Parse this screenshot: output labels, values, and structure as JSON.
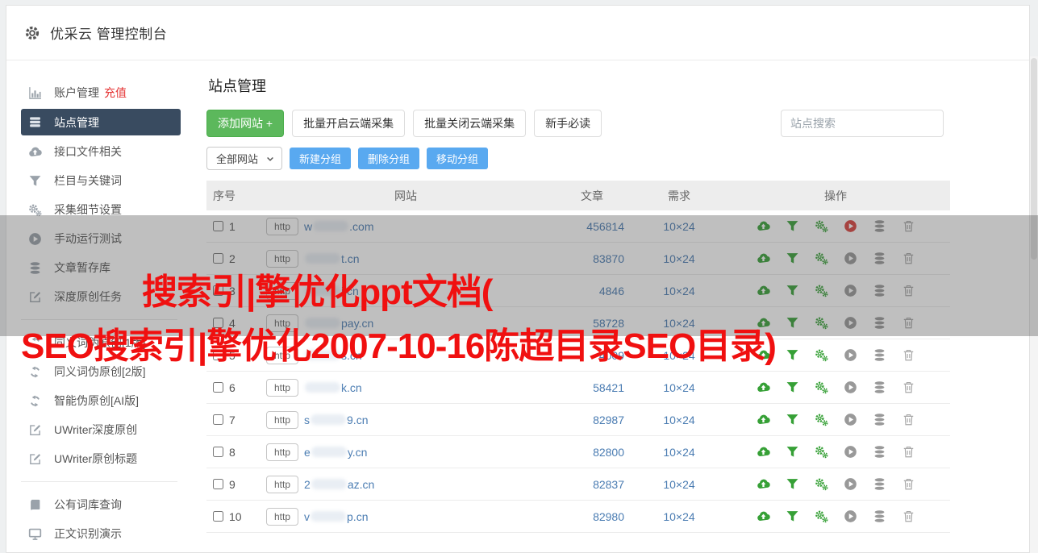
{
  "window": {
    "title": "优采云 管理控制台"
  },
  "sidebar": {
    "items": [
      {
        "icon": "bar-chart-icon",
        "label": "账户管理",
        "badge": "充值"
      },
      {
        "icon": "site-list-icon",
        "label": "站点管理",
        "selected": true
      },
      {
        "icon": "cloud-upload-icon",
        "label": "接口文件相关"
      },
      {
        "icon": "filter-icon",
        "label": "栏目与关键词"
      },
      {
        "icon": "gears-icon",
        "label": "采集细节设置"
      },
      {
        "icon": "play-icon",
        "label": "手动运行测试"
      },
      {
        "icon": "database-icon",
        "label": "文章暂存库"
      },
      {
        "icon": "edit-icon",
        "label": "深度原创任务"
      },
      {
        "divider": true
      },
      {
        "icon": "refresh-icon",
        "label": "同义词伪原创[1版]"
      },
      {
        "icon": "refresh-icon",
        "label": "同义词伪原创[2版]"
      },
      {
        "icon": "refresh-icon",
        "label": "智能伪原创[AI版]"
      },
      {
        "icon": "edit-icon",
        "label": "UWriter深度原创"
      },
      {
        "icon": "edit-icon",
        "label": "UWriter原创标题"
      },
      {
        "divider": true
      },
      {
        "icon": "book-icon",
        "label": "公有词库查询"
      },
      {
        "icon": "monitor-icon",
        "label": "正文识别演示"
      }
    ]
  },
  "main": {
    "page_title": "站点管理",
    "toolbar": {
      "add_site": "添加网站 +",
      "batch_open": "批量开启云端采集",
      "batch_close": "批量关闭云端采集",
      "newbie_guide": "新手必读"
    },
    "search": {
      "placeholder": "站点搜索"
    },
    "group_bar": {
      "filter_selected": "全部网站",
      "new_group": "新建分组",
      "delete_group": "删除分组",
      "move_group": "移动分组"
    },
    "table": {
      "headers": [
        "序号",
        "网站",
        "文章",
        "需求",
        "操作"
      ],
      "protocol_label": "http",
      "row_actions": [
        {
          "name": "cloud-upload-icon",
          "color": "green"
        },
        {
          "name": "filter-icon",
          "color": "green"
        },
        {
          "name": "gears-icon",
          "color": "green"
        },
        {
          "name": "play-icon",
          "color": "gray"
        },
        {
          "name": "database-icon",
          "color": "gray"
        },
        {
          "name": "trash-icon",
          "color": "gray"
        }
      ],
      "rows": [
        {
          "seq": "1",
          "domain_prefix": "w",
          "domain_suffix": ".com",
          "articles": "456814",
          "demand": "10×24",
          "running": true
        },
        {
          "seq": "2",
          "domain_prefix": "",
          "domain_suffix": "t.cn",
          "articles": "83870",
          "demand": "10×24"
        },
        {
          "seq": "3",
          "domain_prefix": "",
          "domain_suffix": "i.cn",
          "articles": "4846",
          "demand": "10×24"
        },
        {
          "seq": "4",
          "domain_prefix": "",
          "domain_suffix": "pay.cn",
          "articles": "58728",
          "demand": "10×24"
        },
        {
          "seq": "5",
          "domain_prefix": "",
          "domain_suffix": "s.cn",
          "articles": "4009",
          "demand": "10×24"
        },
        {
          "seq": "6",
          "domain_prefix": "",
          "domain_suffix": "k.cn",
          "articles": "58421",
          "demand": "10×24"
        },
        {
          "seq": "7",
          "domain_prefix": "s",
          "domain_suffix": "9.cn",
          "articles": "82987",
          "demand": "10×24"
        },
        {
          "seq": "8",
          "domain_prefix": "e",
          "domain_suffix": "y.cn",
          "articles": "82800",
          "demand": "10×24"
        },
        {
          "seq": "9",
          "domain_prefix": "2",
          "domain_suffix": "az.cn",
          "articles": "82837",
          "demand": "10×24"
        },
        {
          "seq": "10",
          "domain_prefix": "v",
          "domain_suffix": "p.cn",
          "articles": "82980",
          "demand": "10×24"
        }
      ]
    }
  },
  "overlay": {
    "watermark_line1": "搜索引|擎优化ppt文档(",
    "watermark_line2": "SEO搜索引|擎优化2007-10-16陈超目录SEO目录)"
  },
  "colors": {
    "sidebar_selected": "#394b60",
    "primary_green": "#5cb85c",
    "primary_blue": "#59a9f0",
    "link_blue": "#4a7cb2",
    "action_green": "#36a036",
    "running_red": "#d9413d",
    "recharge_red": "#e53535",
    "watermark_red": "#f01010",
    "table_header_bg": "#ededed"
  }
}
